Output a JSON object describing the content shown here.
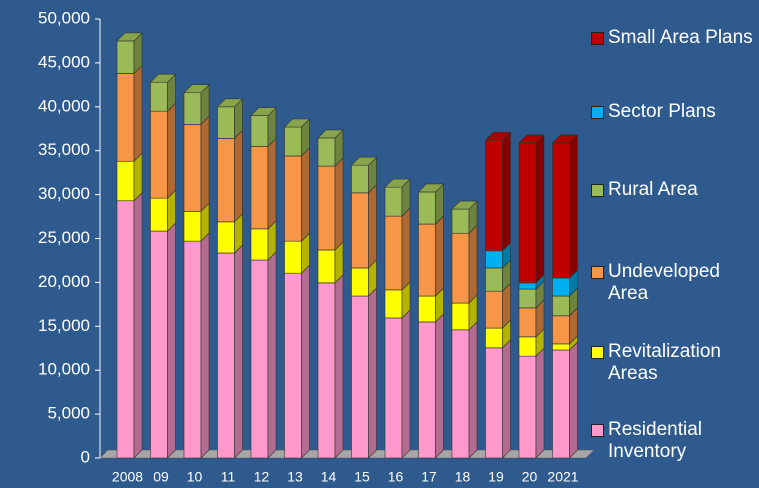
{
  "chart_data": {
    "type": "bar",
    "categories": [
      "2008",
      "09",
      "10",
      "11",
      "12",
      "13",
      "14",
      "15",
      "16",
      "17",
      "18",
      "19",
      "20",
      "2021"
    ],
    "series": [
      {
        "name": "Residential Inventory",
        "color": "#ff99cc",
        "values": [
          29300,
          25850,
          24700,
          23350,
          22550,
          21050,
          19950,
          18450,
          15950,
          15500,
          14600,
          12550,
          11600,
          12300
        ]
      },
      {
        "name": "Revitalization Areas",
        "color": "#ffff00",
        "values": [
          4500,
          3750,
          3400,
          3550,
          3550,
          3650,
          3750,
          3200,
          3200,
          2950,
          3050,
          2250,
          2200,
          700
        ]
      },
      {
        "name": "Undeveloped Area",
        "color": "#f79646",
        "values": [
          10000,
          9900,
          9900,
          9500,
          9400,
          9700,
          9550,
          8550,
          8400,
          8200,
          7950,
          4200,
          3300,
          3200
        ]
      },
      {
        "name": "Rural Area",
        "color": "#9bbb59",
        "values": [
          3700,
          3300,
          3600,
          3600,
          3500,
          3300,
          3200,
          3150,
          3300,
          3650,
          2750,
          2650,
          2150,
          2250
        ]
      },
      {
        "name": "Sector Plans",
        "color": "#00b0f0",
        "values": [
          0,
          0,
          0,
          0,
          0,
          0,
          0,
          0,
          0,
          0,
          0,
          1950,
          700,
          2050
        ]
      },
      {
        "name": "Small Area Plans",
        "color": "#c00000",
        "values": [
          0,
          0,
          0,
          0,
          0,
          0,
          0,
          0,
          0,
          0,
          0,
          12600,
          15950,
          15400
        ]
      }
    ],
    "stacked": true,
    "ylim": [
      0,
      50000
    ],
    "yticks": [
      0,
      {
        "value": 5000,
        "label": "5,000"
      },
      {
        "value": 10000,
        "label": "10,000"
      },
      {
        "value": 15000,
        "label": "15,000"
      },
      {
        "value": 20000,
        "label": "20,000"
      },
      {
        "value": 25000,
        "label": "25,000"
      },
      {
        "value": 30000,
        "label": "30,000"
      },
      {
        "value": 35000,
        "label": "35,000"
      },
      {
        "value": 40000,
        "label": "40,000"
      },
      {
        "value": 45000,
        "label": "45,000"
      },
      {
        "value": 50000,
        "label": "50,000"
      }
    ],
    "legend": "right"
  }
}
